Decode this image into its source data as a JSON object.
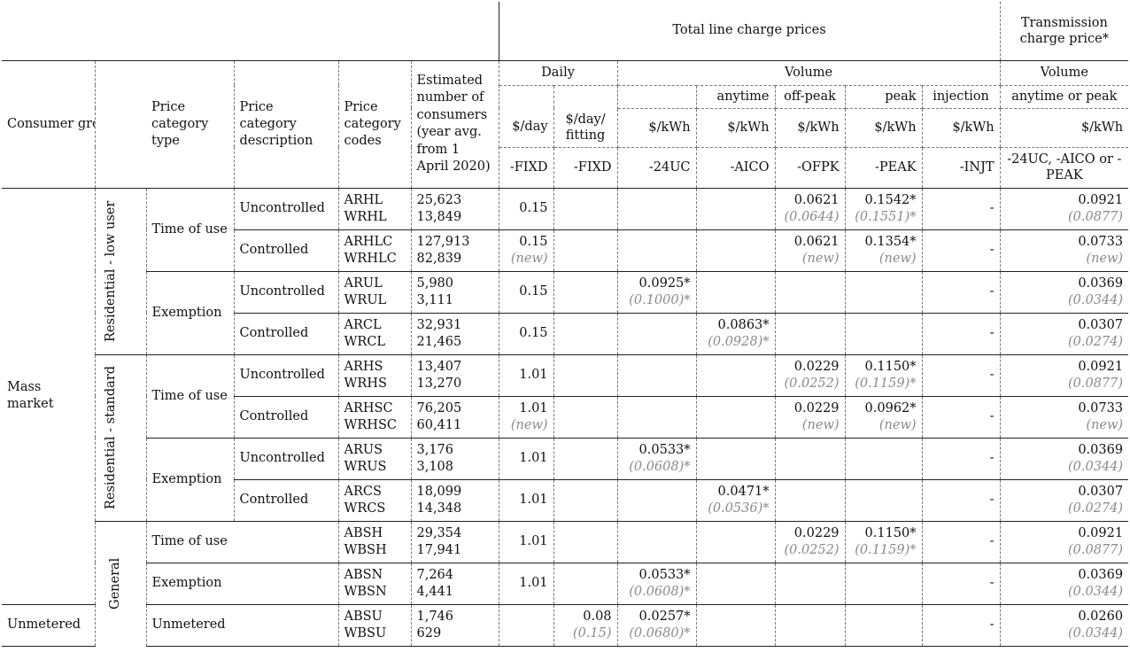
{
  "header": {
    "total_line_charge": "Total line charge prices",
    "transmission": "Transmission charge price*",
    "daily": "Daily",
    "volume": "Volume",
    "volume_trans": "Volume",
    "consumer_groups": "Consumer groups",
    "price_category_type": "Price category type",
    "price_category_description": "Price category description",
    "price_category_codes": "Price category codes",
    "estimated_consumers": "Estimated number of consumers (year avg. from 1 April 2020)",
    "anytime": "anytime",
    "offpeak": "off-peak",
    "peak": "peak",
    "injection": "injection",
    "anytime_or_peak": "anytime or peak",
    "units": [
      "$/day",
      "$/day/ fitting",
      "$/kWh",
      "$/kWh",
      "$/kWh",
      "$/kWh",
      "$/kWh",
      "$/kWh"
    ],
    "suffixes": [
      "-FIXD",
      "-FIXD",
      "-24UC",
      "-AICO",
      "-OFPK",
      "-PEAK",
      "-INJT",
      "-24UC, -AICO or -PEAK"
    ]
  },
  "groups": {
    "mass_market": "Mass market",
    "unmetered": "Unmetered",
    "res_low": "Residential - low user",
    "res_std": "Residential - standard",
    "general": "General",
    "tou": "Time of use",
    "exemption": "Exemption",
    "unmetered_type": "Unmetered",
    "uncontrolled": "Uncontrolled",
    "controlled": "Controlled"
  },
  "rows": [
    {
      "codes": [
        "ARHL",
        "WRHL"
      ],
      "consumers": [
        "25,623",
        "13,849"
      ],
      "fixd": [
        "0.15",
        ""
      ],
      "fitting": [
        "",
        ""
      ],
      "uc24": [
        "",
        ""
      ],
      "aico": [
        "",
        ""
      ],
      "ofpk": [
        "0.0621",
        "(0.0644)"
      ],
      "peak": [
        "0.1542*",
        "(0.1551)*"
      ],
      "injt": "-",
      "trans": [
        "0.0921",
        "(0.0877)"
      ]
    },
    {
      "codes": [
        "ARHLC",
        "WRHLC"
      ],
      "consumers": [
        "127,913",
        "82,839"
      ],
      "fixd": [
        "0.15",
        "(new)"
      ],
      "fitting": [
        "",
        ""
      ],
      "uc24": [
        "",
        ""
      ],
      "aico": [
        "",
        ""
      ],
      "ofpk": [
        "0.0621",
        "(new)"
      ],
      "peak": [
        "0.1354*",
        "(new)"
      ],
      "injt": "-",
      "trans": [
        "0.0733",
        "(new)"
      ]
    },
    {
      "codes": [
        "ARUL",
        "WRUL"
      ],
      "consumers": [
        "5,980",
        "3,111"
      ],
      "fixd": [
        "0.15",
        ""
      ],
      "fitting": [
        "",
        ""
      ],
      "uc24": [
        "0.0925*",
        "(0.1000)*"
      ],
      "aico": [
        "",
        ""
      ],
      "ofpk": [
        "",
        ""
      ],
      "peak": [
        "",
        ""
      ],
      "injt": "-",
      "trans": [
        "0.0369",
        "(0.0344)"
      ]
    },
    {
      "codes": [
        "ARCL",
        "WRCL"
      ],
      "consumers": [
        "32,931",
        "21,465"
      ],
      "fixd": [
        "0.15",
        ""
      ],
      "fitting": [
        "",
        ""
      ],
      "uc24": [
        "",
        ""
      ],
      "aico": [
        "0.0863*",
        "(0.0928)*"
      ],
      "ofpk": [
        "",
        ""
      ],
      "peak": [
        "",
        ""
      ],
      "injt": "-",
      "trans": [
        "0.0307",
        "(0.0274)"
      ]
    },
    {
      "codes": [
        "ARHS",
        "WRHS"
      ],
      "consumers": [
        "13,407",
        "13,270"
      ],
      "fixd": [
        "1.01",
        ""
      ],
      "fitting": [
        "",
        ""
      ],
      "uc24": [
        "",
        ""
      ],
      "aico": [
        "",
        ""
      ],
      "ofpk": [
        "0.0229",
        "(0.0252)"
      ],
      "peak": [
        "0.1150*",
        "(0.1159)*"
      ],
      "injt": "-",
      "trans": [
        "0.0921",
        "(0.0877)"
      ]
    },
    {
      "codes": [
        "ARHSC",
        "WRHSC"
      ],
      "consumers": [
        "76,205",
        "60,411"
      ],
      "fixd": [
        "1.01",
        "(new)"
      ],
      "fitting": [
        "",
        ""
      ],
      "uc24": [
        "",
        ""
      ],
      "aico": [
        "",
        ""
      ],
      "ofpk": [
        "0.0229",
        "(new)"
      ],
      "peak": [
        "0.0962*",
        "(new)"
      ],
      "injt": "-",
      "trans": [
        "0.0733",
        "(new)"
      ]
    },
    {
      "codes": [
        "ARUS",
        "WRUS"
      ],
      "consumers": [
        "3,176",
        "3,108"
      ],
      "fixd": [
        "1.01",
        ""
      ],
      "fitting": [
        "",
        ""
      ],
      "uc24": [
        "0.0533*",
        "(0.0608)*"
      ],
      "aico": [
        "",
        ""
      ],
      "ofpk": [
        "",
        ""
      ],
      "peak": [
        "",
        ""
      ],
      "injt": "-",
      "trans": [
        "0.0369",
        "(0.0344)"
      ]
    },
    {
      "codes": [
        "ARCS",
        "WRCS"
      ],
      "consumers": [
        "18,099",
        "14,348"
      ],
      "fixd": [
        "1.01",
        ""
      ],
      "fitting": [
        "",
        ""
      ],
      "uc24": [
        "",
        ""
      ],
      "aico": [
        "0.0471*",
        "(0.0536)*"
      ],
      "ofpk": [
        "",
        ""
      ],
      "peak": [
        "",
        ""
      ],
      "injt": "-",
      "trans": [
        "0.0307",
        "(0.0274)"
      ]
    },
    {
      "codes": [
        "ABSH",
        "WBSH"
      ],
      "consumers": [
        "29,354",
        "17,941"
      ],
      "fixd": [
        "1.01",
        ""
      ],
      "fitting": [
        "",
        ""
      ],
      "uc24": [
        "",
        ""
      ],
      "aico": [
        "",
        ""
      ],
      "ofpk": [
        "0.0229",
        "(0.0252)"
      ],
      "peak": [
        "0.1150*",
        "(0.1159)*"
      ],
      "injt": "-",
      "trans": [
        "0.0921",
        "(0.0877)"
      ]
    },
    {
      "codes": [
        "ABSN",
        "WBSN"
      ],
      "consumers": [
        "7,264",
        "4,441"
      ],
      "fixd": [
        "1.01",
        ""
      ],
      "fitting": [
        "",
        ""
      ],
      "uc24": [
        "0.0533*",
        "(0.0608)*"
      ],
      "aico": [
        "",
        ""
      ],
      "ofpk": [
        "",
        ""
      ],
      "peak": [
        "",
        ""
      ],
      "injt": "-",
      "trans": [
        "0.0369",
        "(0.0344)"
      ]
    },
    {
      "codes": [
        "ABSU",
        "WBSU"
      ],
      "consumers": [
        "1,746",
        "629"
      ],
      "fixd": [
        "",
        ""
      ],
      "fitting": [
        "0.08",
        "(0.15)"
      ],
      "uc24": [
        "0.0257*",
        "(0.0680)*"
      ],
      "aico": [
        "",
        ""
      ],
      "ofpk": [
        "",
        ""
      ],
      "peak": [
        "",
        ""
      ],
      "injt": "-",
      "trans": [
        "0.0260",
        "(0.0344)"
      ]
    }
  ]
}
